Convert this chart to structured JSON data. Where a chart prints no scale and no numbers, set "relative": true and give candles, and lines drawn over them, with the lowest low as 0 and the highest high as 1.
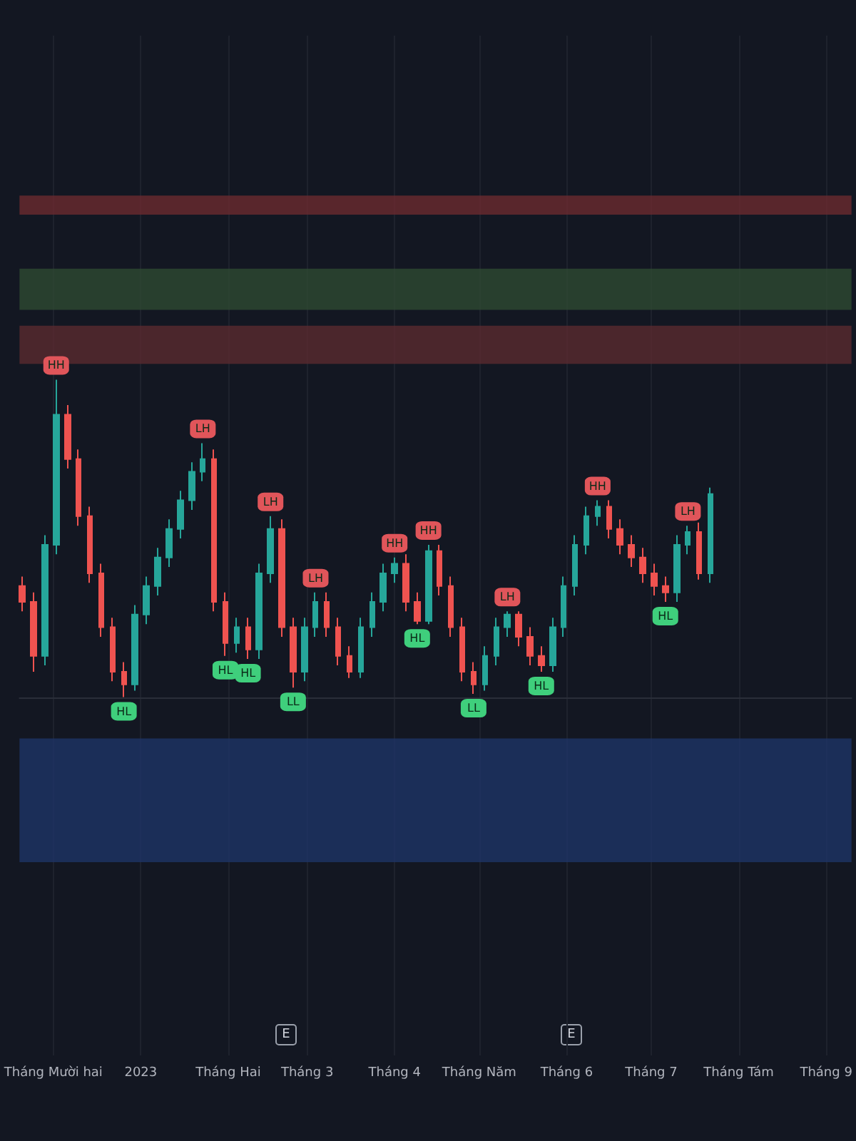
{
  "chart_data": {
    "type": "candlestick",
    "relative": true,
    "grid": "x",
    "x": [
      "2022-11-20",
      "2022-11-24",
      "2022-11-28",
      "2022-12-02",
      "2022-12-06",
      "2022-12-10",
      "2022-12-14",
      "2022-12-18",
      "2022-12-22",
      "2022-12-26",
      "2022-12-30",
      "2023-01-03",
      "2023-01-07",
      "2023-01-11",
      "2023-01-15",
      "2023-01-19",
      "2023-01-23",
      "2023-01-27",
      "2023-01-31",
      "2023-02-04",
      "2023-02-08",
      "2023-02-12",
      "2023-02-16",
      "2023-02-20",
      "2023-02-24",
      "2023-02-28",
      "2023-03-04",
      "2023-03-08",
      "2023-03-12",
      "2023-03-16",
      "2023-03-20",
      "2023-03-24",
      "2023-03-28",
      "2023-04-01",
      "2023-04-05",
      "2023-04-09",
      "2023-04-13",
      "2023-04-17",
      "2023-04-21",
      "2023-04-25",
      "2023-04-29",
      "2023-05-03",
      "2023-05-07",
      "2023-05-11",
      "2023-05-15",
      "2023-05-19",
      "2023-05-23",
      "2023-05-27",
      "2023-05-31",
      "2023-06-04",
      "2023-06-08",
      "2023-06-12",
      "2023-06-16",
      "2023-06-20",
      "2023-06-24",
      "2023-06-28",
      "2023-07-02",
      "2023-07-06",
      "2023-07-10",
      "2023-07-14",
      "2023-07-18",
      "2023-07-22"
    ],
    "ohlc": [
      [
        0.35,
        0.38,
        0.27,
        0.3
      ],
      [
        0.3,
        0.33,
        0.08,
        0.13
      ],
      [
        0.13,
        0.51,
        0.1,
        0.48
      ],
      [
        0.48,
        1.0,
        0.45,
        0.89
      ],
      [
        0.89,
        0.92,
        0.72,
        0.75
      ],
      [
        0.75,
        0.78,
        0.54,
        0.57
      ],
      [
        0.57,
        0.6,
        0.36,
        0.39
      ],
      [
        0.39,
        0.42,
        0.19,
        0.22
      ],
      [
        0.22,
        0.25,
        0.05,
        0.08
      ],
      [
        0.08,
        0.11,
        0,
        0.04
      ],
      [
        0.04,
        0.29,
        0.02,
        0.26
      ],
      [
        0.26,
        0.38,
        0.23,
        0.35
      ],
      [
        0.35,
        0.47,
        0.32,
        0.44
      ],
      [
        0.44,
        0.56,
        0.41,
        0.53
      ],
      [
        0.53,
        0.65,
        0.5,
        0.62
      ],
      [
        0.62,
        0.74,
        0.59,
        0.71
      ],
      [
        0.71,
        0.8,
        0.68,
        0.75
      ],
      [
        0.75,
        0.78,
        0.27,
        0.3
      ],
      [
        0.3,
        0.33,
        0.13,
        0.17
      ],
      [
        0.17,
        0.25,
        0.14,
        0.22
      ],
      [
        0.22,
        0.25,
        0.12,
        0.15
      ],
      [
        0.15,
        0.42,
        0.12,
        0.39
      ],
      [
        0.39,
        0.57,
        0.36,
        0.53
      ],
      [
        0.53,
        0.56,
        0.19,
        0.22
      ],
      [
        0.22,
        0.25,
        0.03,
        0.08
      ],
      [
        0.08,
        0.25,
        0.05,
        0.22
      ],
      [
        0.22,
        0.33,
        0.19,
        0.3
      ],
      [
        0.3,
        0.33,
        0.19,
        0.22
      ],
      [
        0.22,
        0.25,
        0.1,
        0.13
      ],
      [
        0.13,
        0.16,
        0.06,
        0.08
      ],
      [
        0.08,
        0.25,
        0.06,
        0.22
      ],
      [
        0.22,
        0.33,
        0.19,
        0.3
      ],
      [
        0.3,
        0.42,
        0.27,
        0.39
      ],
      [
        0.39,
        0.44,
        0.36,
        0.42
      ],
      [
        0.42,
        0.45,
        0.27,
        0.3
      ],
      [
        0.3,
        0.33,
        0.23,
        0.24
      ],
      [
        0.24,
        0.48,
        0.23,
        0.46
      ],
      [
        0.46,
        0.48,
        0.32,
        0.35
      ],
      [
        0.35,
        0.38,
        0.19,
        0.22
      ],
      [
        0.22,
        0.25,
        0.05,
        0.08
      ],
      [
        0.08,
        0.11,
        0.01,
        0.04
      ],
      [
        0.04,
        0.16,
        0.02,
        0.13
      ],
      [
        0.13,
        0.25,
        0.1,
        0.22
      ],
      [
        0.22,
        0.27,
        0.19,
        0.26
      ],
      [
        0.26,
        0.27,
        0.16,
        0.19
      ],
      [
        0.19,
        0.22,
        0.1,
        0.13
      ],
      [
        0.13,
        0.16,
        0.08,
        0.1
      ],
      [
        0.1,
        0.25,
        0.08,
        0.22
      ],
      [
        0.22,
        0.38,
        0.19,
        0.35
      ],
      [
        0.35,
        0.51,
        0.32,
        0.48
      ],
      [
        0.48,
        0.6,
        0.45,
        0.57
      ],
      [
        0.57,
        0.62,
        0.54,
        0.6
      ],
      [
        0.6,
        0.62,
        0.5,
        0.53
      ],
      [
        0.53,
        0.56,
        0.45,
        0.48
      ],
      [
        0.48,
        0.51,
        0.41,
        0.44
      ],
      [
        0.44,
        0.47,
        0.36,
        0.39
      ],
      [
        0.39,
        0.42,
        0.32,
        0.35
      ],
      [
        0.35,
        0.38,
        0.3,
        0.33
      ],
      [
        0.33,
        0.51,
        0.3,
        0.48
      ],
      [
        0.48,
        0.54,
        0.45,
        0.52
      ],
      [
        0.52,
        0.55,
        0.37,
        0.39
      ],
      [
        0.39,
        0.66,
        0.36,
        0.64
      ]
    ],
    "xlim": [
      "2022-11-19",
      "2023-09-10"
    ],
    "xticks": [
      {
        "value": "2022-12-01",
        "label": "Tháng Mười hai"
      },
      {
        "value": "2023-01-01",
        "label": "2023"
      },
      {
        "value": "2023-02-01",
        "label": "Tháng Hai"
      },
      {
        "value": "2023-03-01",
        "label": "Tháng 3"
      },
      {
        "value": "2023-04-01",
        "label": "Tháng 4"
      },
      {
        "value": "2023-05-01",
        "label": "Tháng Năm"
      },
      {
        "value": "2023-06-01",
        "label": "Tháng 6"
      },
      {
        "value": "2023-07-01",
        "label": "Tháng 7"
      },
      {
        "value": "2023-08-01",
        "label": "Tháng Tám"
      },
      {
        "value": "2023-09-01",
        "label": "Tháng 9"
      }
    ],
    "bands": [
      {
        "axis": "y",
        "from": 1.52,
        "to": 1.58,
        "color": "#6b2a30"
      },
      {
        "axis": "y",
        "from": 1.22,
        "to": 1.35,
        "color": "#2e4a32"
      },
      {
        "axis": "y",
        "from": 1.05,
        "to": 1.17,
        "color": "#5a2a30"
      },
      {
        "axis": "y",
        "from": -0.52,
        "to": -0.13,
        "color": "#1e3566"
      }
    ],
    "annotations": [
      {
        "text": "HH",
        "x": "2022-12-02",
        "y": 1.0
      },
      {
        "text": "HL",
        "x": "2022-12-26",
        "y": 0
      },
      {
        "text": "LH",
        "x": "2023-01-23",
        "y": 0.8
      },
      {
        "text": "HL",
        "x": "2023-01-31",
        "y": 0.13
      },
      {
        "text": "HL",
        "x": "2023-02-08",
        "y": 0.12
      },
      {
        "text": "LH",
        "x": "2023-02-16",
        "y": 0.57
      },
      {
        "text": "LL",
        "x": "2023-02-24",
        "y": 0.03
      },
      {
        "text": "LH",
        "x": "2023-03-04",
        "y": 0.33
      },
      {
        "text": "HH",
        "x": "2023-04-01",
        "y": 0.44
      },
      {
        "text": "HL",
        "x": "2023-04-09",
        "y": 0.23
      },
      {
        "text": "HH",
        "x": "2023-04-13",
        "y": 0.48
      },
      {
        "text": "LL",
        "x": "2023-04-29",
        "y": 0.01
      },
      {
        "text": "LH",
        "x": "2023-05-11",
        "y": 0.27
      },
      {
        "text": "HL",
        "x": "2023-05-23",
        "y": 0.08
      },
      {
        "text": "HH",
        "x": "2023-06-12",
        "y": 0.62
      },
      {
        "text": "HL",
        "x": "2023-07-06",
        "y": 0.3
      },
      {
        "text": "LH",
        "x": "2023-07-14",
        "y": 0.54
      },
      "E",
      "E"
    ]
  }
}
